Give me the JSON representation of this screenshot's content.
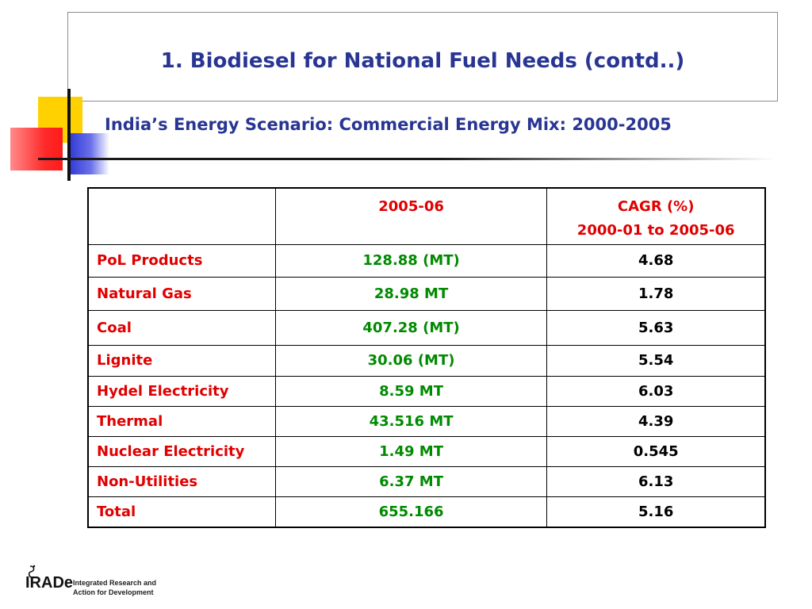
{
  "title": "1. Biodiesel for National Fuel Needs (contd..)",
  "subtitle": "India’s Energy Scenario: Commercial Energy Mix: 2000-2005",
  "table": {
    "headers": [
      "",
      "2005-06",
      "CAGR (%)",
      "2000-01 to 2005-06"
    ],
    "rows": [
      {
        "label": "PoL Products",
        "value": "128.88 (MT)",
        "cagr": "4.68"
      },
      {
        "label": "Natural Gas",
        "value": "28.98 MT",
        "cagr": "1.78"
      },
      {
        "label": "Coal",
        "value": "407.28 (MT)",
        "cagr": "5.63"
      },
      {
        "label": "Lignite",
        "value": "30.06 (MT)",
        "cagr": "5.54"
      },
      {
        "label": "Hydel Electricity",
        "value": "8.59 MT",
        "cagr": "6.03"
      },
      {
        "label": "Thermal",
        "value": "43.516 MT",
        "cagr": "4.39"
      },
      {
        "label": "Nuclear Electricity",
        "value": "1.49 MT",
        "cagr": "0.545"
      },
      {
        "label": "Non-Utilities",
        "value": "6.37 MT",
        "cagr": "6.13"
      },
      {
        "label": "Total",
        "value": "655.166",
        "cagr": "5.16"
      }
    ]
  },
  "logo": {
    "mark": "IRADe",
    "line1": "Integrated Research and",
    "line2": "Action for Development"
  },
  "colors": {
    "title": "#283593",
    "label": "#e00000",
    "value": "#008a00",
    "cagr": "#000000"
  }
}
